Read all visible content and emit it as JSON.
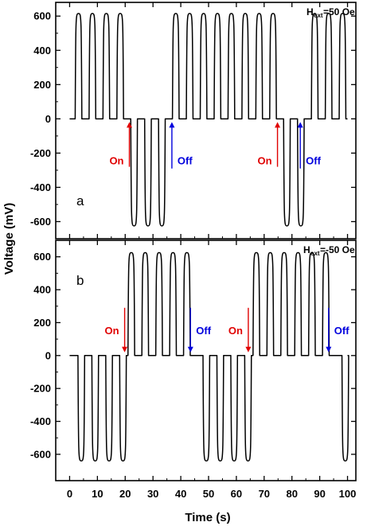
{
  "chart_data": {
    "type": "line",
    "xlabel": "Time (s)",
    "ylabel": "Voltage (mV)",
    "xlim": [
      -5,
      103
    ],
    "x_ticks": [
      "0",
      "10",
      "20",
      "30",
      "40",
      "50",
      "60",
      "70",
      "80",
      "90",
      "100"
    ],
    "colors": {
      "line": "#000000",
      "on": "#e00000",
      "off": "#0000dd"
    },
    "panels": [
      {
        "id": "a",
        "label": "a",
        "field_label": "H",
        "field_sub": "ext",
        "field_value": "=50 Oe",
        "ylim": [
          -700,
          680
        ],
        "y_ticks": [
          "600",
          "400",
          "200",
          "0",
          "-200",
          "-400",
          "-600"
        ],
        "pulse_period_s": 5,
        "pulse_width_s": 2.4,
        "pulse_amplitude_mV": 615,
        "pulses_start_s": [
          2,
          7,
          12,
          17,
          22,
          27,
          32,
          37,
          42,
          47,
          52,
          57,
          62,
          67,
          72,
          77,
          82,
          87,
          92,
          97
        ],
        "pulses_negative_start_s": [
          22,
          27,
          32,
          77,
          82
        ],
        "negative_amplitude_mV": -625,
        "annotations": [
          {
            "text": "On",
            "type": "on",
            "x": 21.5,
            "y_from": -280,
            "y_to": 0
          },
          {
            "text": "Off",
            "type": "off",
            "x": 36.8,
            "y_from": -290,
            "y_to": 0
          },
          {
            "text": "On",
            "type": "on",
            "x": 74.8,
            "y_from": -280,
            "y_to": 0
          },
          {
            "text": "Off",
            "type": "off",
            "x": 83.0,
            "y_from": -290,
            "y_to": 0
          }
        ]
      },
      {
        "id": "b",
        "label": "b",
        "field_label": "H",
        "field_sub": "ext",
        "field_value": "=-50 Oe",
        "ylim": [
          -760,
          700
        ],
        "y_ticks": [
          "600",
          "400",
          "200",
          "0",
          "-200",
          "-400",
          "-600"
        ],
        "pulse_period_s": 5,
        "pulse_width_s": 2.4,
        "pulse_amplitude_mV": -640,
        "pulses_start_s": [
          3,
          8,
          13,
          18,
          23,
          28,
          33,
          38,
          43,
          48,
          53,
          58,
          63,
          68,
          73,
          78,
          83,
          88,
          93,
          98
        ],
        "pulses_positive_start_s": [
          21,
          26,
          31,
          36,
          41,
          66,
          71,
          76,
          81,
          86,
          91
        ],
        "positive_amplitude_mV": 625,
        "annotations": [
          {
            "text": "On",
            "type": "on",
            "x": 19.8,
            "y_from": 290,
            "y_to": 0
          },
          {
            "text": "Off",
            "type": "off",
            "x": 43.5,
            "y_from": 290,
            "y_to": 0
          },
          {
            "text": "On",
            "type": "on",
            "x": 64.3,
            "y_from": 290,
            "y_to": 0
          },
          {
            "text": "Off",
            "type": "off",
            "x": 93.2,
            "y_from": 290,
            "y_to": 0
          }
        ]
      }
    ]
  }
}
